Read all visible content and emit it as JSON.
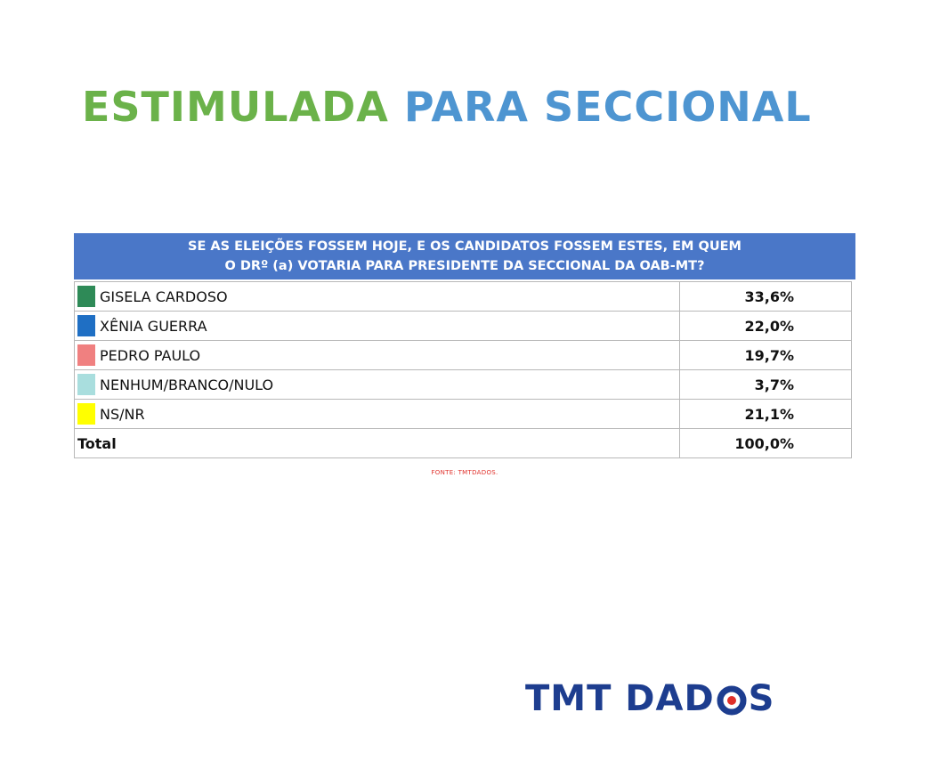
{
  "title": {
    "part1": "ESTIMULADA",
    "part2": "PARA SECCIONAL"
  },
  "table": {
    "question_line1": "SE AS ELEIÇÕES FOSSEM HOJE, E OS CANDIDATOS FOSSEM ESTES, EM QUEM",
    "question_line2": "O DRº (a) VOTARIA PARA PRESIDENTE DA SECCIONAL DA OAB-MT?",
    "total_label": "Total",
    "total_value": "100,0%"
  },
  "source": "FONTE: TMTDADOS.",
  "logo": {
    "text_before": "TMT DAD",
    "text_after": "S"
  },
  "colors": {
    "title_green": "#6bb24a",
    "title_blue": "#4e95d1",
    "header_bg": "#4a77c8",
    "logo_blue": "#1d3d8f",
    "logo_red": "#e0302a",
    "source_red": "#e0302a"
  },
  "chart_data": {
    "type": "table",
    "categories": [
      "GISELA CARDOSO",
      "XÊNIA GUERRA",
      "PEDRO PAULO",
      "NENHUM/BRANCO/NULO",
      "NS/NR"
    ],
    "values": [
      33.6,
      22.0,
      19.7,
      3.7,
      21.1
    ],
    "value_labels": [
      "33,6%",
      "22,0%",
      "19,7%",
      "3,7%",
      "21,1%"
    ],
    "swatch_colors": [
      "#2e8a57",
      "#1f6fc4",
      "#f08080",
      "#a9dede",
      "#ffff00"
    ],
    "total": 100.0
  }
}
